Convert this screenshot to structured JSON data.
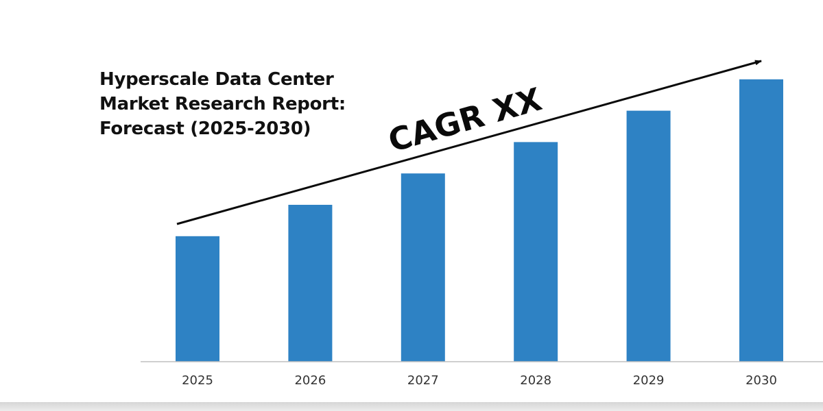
{
  "title_lines": [
    "Hyperscale Data Center",
    "Market Research Report:",
    "Forecast (2025-2030)"
  ],
  "chart_data": {
    "type": "bar",
    "categories": [
      "2025",
      "2026",
      "2027",
      "2028",
      "2029",
      "2030"
    ],
    "values": [
      40,
      50,
      60,
      70,
      80,
      90
    ],
    "ylim": [
      0,
      100
    ],
    "annotation": "CAGR XX",
    "bar_color": "#2e82c4",
    "axis_color": "#bfbfbf",
    "trend_arrow": true,
    "grid": false
  }
}
